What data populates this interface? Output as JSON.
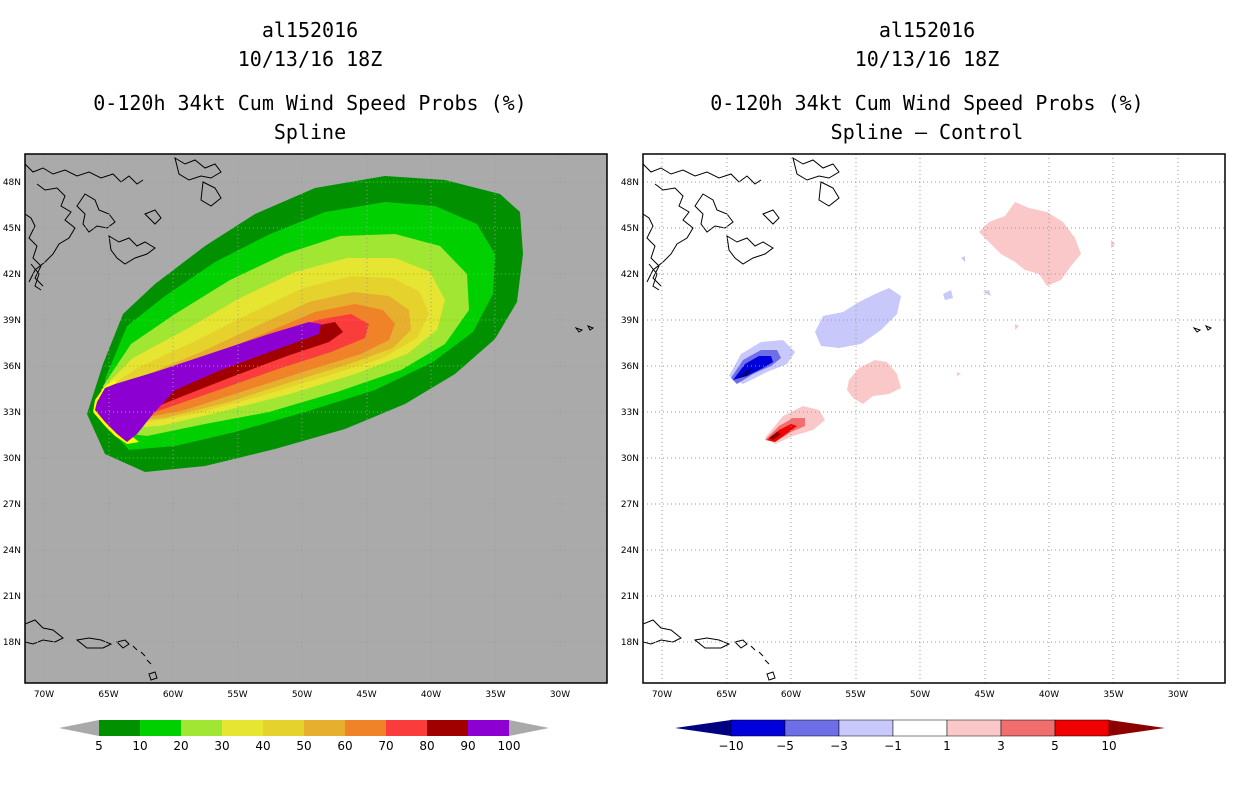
{
  "panels": [
    {
      "storm_id": "al152016",
      "datetime": "10/13/16 18Z",
      "product": "0-120h 34kt Cum Wind Speed Probs (%)",
      "subtitle": "Spline",
      "colorbar": {
        "labels": [
          "5",
          "10",
          "20",
          "30",
          "40",
          "50",
          "60",
          "70",
          "80",
          "90",
          "100"
        ],
        "colors": [
          "#009000",
          "#00d000",
          "#a0e632",
          "#e6e632",
          "#e6d22d",
          "#e6af2d",
          "#f08228",
          "#fa3c3c",
          "#a00000",
          "#8c00d2"
        ],
        "extend_color": "#a9a9a9"
      }
    },
    {
      "storm_id": "al152016",
      "datetime": "10/13/16 18Z",
      "product": "0-120h 34kt Cum Wind Speed Probs (%)",
      "subtitle": "Spline – Control",
      "colorbar": {
        "labels": [
          "−10",
          "−5",
          "−3",
          "−1",
          "1",
          "3",
          "5",
          "10"
        ],
        "colors": [
          "#0000dc",
          "#0000dc",
          "#6e6ee6",
          "#c8c8fa",
          "#ffffff",
          "#fac8c8",
          "#f06e6e",
          "#f00000",
          "#8c0000"
        ]
      }
    }
  ],
  "map": {
    "lat_labels": [
      "48N",
      "45N",
      "42N",
      "39N",
      "36N",
      "33N",
      "30N",
      "27N",
      "24N",
      "21N",
      "18N"
    ],
    "lon_labels": [
      "70W",
      "65W",
      "60W",
      "55W",
      "50W",
      "45W",
      "40W",
      "35W",
      "30W"
    ]
  },
  "chart_data": [
    {
      "type": "heatmap",
      "title": "0-120h 34kt Cum Wind Speed Probs (%) - Spline",
      "units": "%",
      "contour_levels": [
        5,
        10,
        20,
        30,
        40,
        50,
        60,
        70,
        80,
        90,
        100
      ],
      "background_value": "below 5",
      "max_region": {
        "value": ">=100",
        "lon_range": [
          -66,
          -48
        ],
        "lat_range": [
          31,
          39
        ]
      },
      "outer_5pct_extent": {
        "lon_range": [
          -66,
          -32
        ],
        "lat_range": [
          30,
          48
        ]
      }
    },
    {
      "type": "heatmap",
      "title": "0-120h 34kt Cum Wind Speed Probs (%) - Spline – Control",
      "units": "%",
      "contour_levels": [
        -10,
        -5,
        -3,
        -1,
        1,
        3,
        5,
        10
      ],
      "features": [
        {
          "sign": "negative",
          "min": -10,
          "center_lon": -63,
          "center_lat": 36
        },
        {
          "sign": "negative",
          "min": -1,
          "center_lon": -54,
          "center_lat": 38.5
        },
        {
          "sign": "positive",
          "max": 10,
          "center_lon": -61,
          "center_lat": 32
        },
        {
          "sign": "positive",
          "max": 1,
          "center_lon": -53,
          "center_lat": 35
        },
        {
          "sign": "positive",
          "max": 1,
          "center_lon": -40,
          "center_lat": 44
        }
      ]
    }
  ]
}
